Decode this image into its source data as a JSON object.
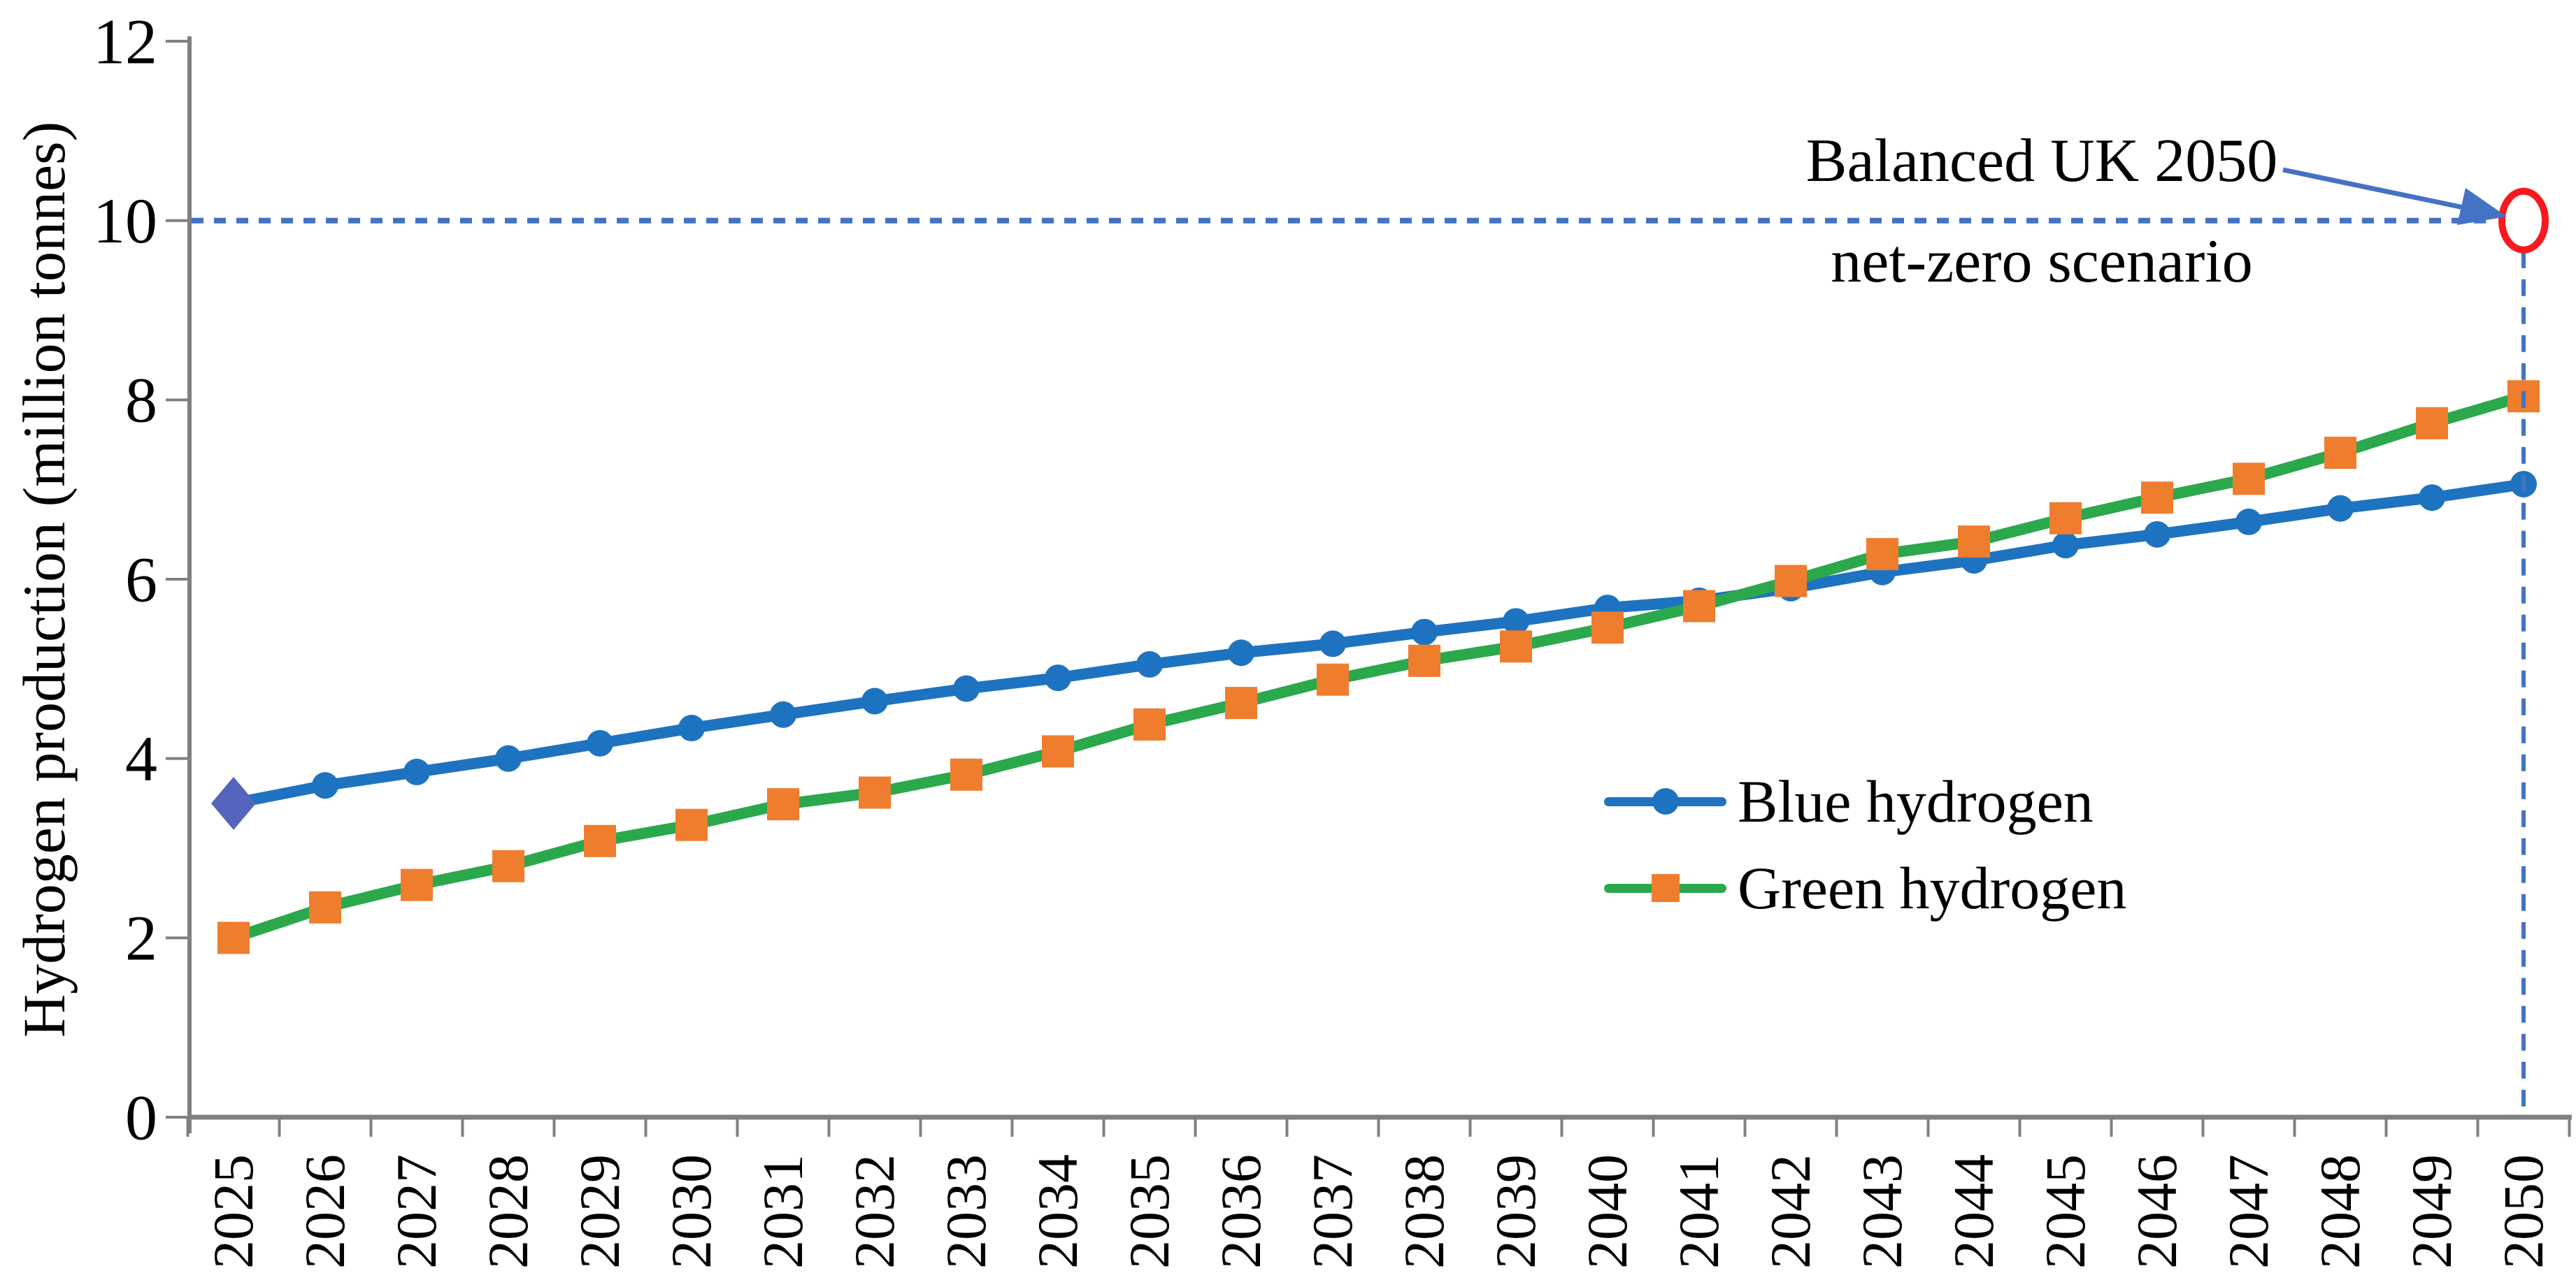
{
  "figure": {
    "y_axis_title": "Hydrogen production (million tonnes)",
    "annotation": {
      "line1": "Balanced UK 2050",
      "line2": "net-zero scenario"
    },
    "legend": {
      "blue_label": "Blue hydrogen",
      "green_label": "Green hydrogen"
    }
  },
  "chart_data": {
    "type": "line",
    "title": "",
    "xlabel": "",
    "ylabel": "Hydrogen production (million tonnes)",
    "ylim": [
      0,
      12
    ],
    "yticks": [
      0,
      2,
      4,
      6,
      8,
      10,
      12
    ],
    "grid": false,
    "legend_position": "middle-right",
    "x": [
      2025,
      2026,
      2027,
      2028,
      2029,
      2030,
      2031,
      2032,
      2033,
      2034,
      2035,
      2036,
      2037,
      2038,
      2039,
      2040,
      2041,
      2042,
      2043,
      2044,
      2045,
      2046,
      2047,
      2048,
      2049,
      2050
    ],
    "series": [
      {
        "name": "Blue hydrogen",
        "color": "#1E73C0",
        "marker": "circle",
        "first_marker": "diamond",
        "first_marker_color": "#5565BE",
        "values": [
          3.5,
          3.7,
          3.85,
          4.0,
          4.17,
          4.34,
          4.49,
          4.64,
          4.78,
          4.9,
          5.05,
          5.18,
          5.28,
          5.41,
          5.53,
          5.68,
          5.76,
          5.9,
          6.08,
          6.21,
          6.38,
          6.5,
          6.64,
          6.79,
          6.91,
          7.06
        ]
      },
      {
        "name": "Green hydrogen",
        "color": "#2BA84C",
        "marker": "square",
        "marker_color": "#EE7D2E",
        "values": [
          2.0,
          2.34,
          2.59,
          2.8,
          3.08,
          3.26,
          3.49,
          3.62,
          3.82,
          4.08,
          4.38,
          4.62,
          4.88,
          5.09,
          5.25,
          5.46,
          5.7,
          5.98,
          6.28,
          6.42,
          6.68,
          6.91,
          7.12,
          7.41,
          7.74,
          8.04
        ]
      }
    ],
    "annotation": {
      "text_line1": "Balanced UK 2050",
      "text_line2": "net-zero scenario",
      "target_value": 10,
      "target_year": 2050,
      "dashed_line_color": "#4472C4",
      "arrow_color": "#4472C4",
      "target_circle_color": "#F8191F"
    },
    "axis_color": "#808080",
    "tick_label_color": "#000000"
  }
}
